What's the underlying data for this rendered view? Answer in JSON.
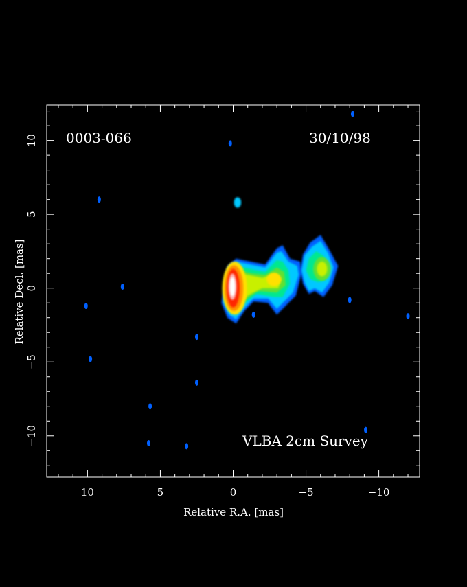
{
  "chart_data": {
    "type": "heatmap",
    "source": "0003-066",
    "date": "30/10/98",
    "survey": "VLBA 2cm Survey",
    "xlabel": "Relative R.A. [mas]",
    "ylabel": "Relative Decl. [mas]",
    "xlim": [
      12.8,
      -12.8
    ],
    "ylim": [
      -12.8,
      12.4
    ],
    "x_ticks": [
      10,
      5,
      0,
      -5,
      -10
    ],
    "y_ticks": [
      10,
      5,
      0,
      -5,
      -10
    ],
    "x_tick_labels": [
      "10",
      "5",
      "0",
      "−5",
      "−10"
    ],
    "y_tick_labels": [
      "10",
      "5",
      "0",
      "−5",
      "−10"
    ],
    "colormap": [
      "#001060",
      "#0060ff",
      "#00c8ff",
      "#00e890",
      "#60e030",
      "#c8f000",
      "#ffe000",
      "#ff9000",
      "#ff2800",
      "#ffffff"
    ],
    "background": "#000000",
    "emission_regions": [
      {
        "name": "core",
        "x": 0.0,
        "y": 0.0,
        "peak": 1.0
      },
      {
        "name": "inner-jet",
        "x": -1.5,
        "y": 0.5,
        "peak": 0.55
      },
      {
        "name": "jet-knot",
        "x": -3.0,
        "y": 0.6,
        "peak": 0.5
      },
      {
        "name": "outer-jet-knot",
        "x": -6.2,
        "y": 1.3,
        "peak": 0.4
      },
      {
        "name": "northern-spot",
        "x": -0.3,
        "y": 5.8,
        "peak": 0.15
      }
    ],
    "noise_spots": [
      {
        "x": 0.2,
        "y": 9.8
      },
      {
        "x": 9.2,
        "y": 6.0
      },
      {
        "x": 7.6,
        "y": 0.1
      },
      {
        "x": 10.1,
        "y": -1.2
      },
      {
        "x": 9.8,
        "y": -4.8
      },
      {
        "x": 2.5,
        "y": -3.3
      },
      {
        "x": 2.5,
        "y": -6.4
      },
      {
        "x": 5.7,
        "y": -8.0
      },
      {
        "x": 5.8,
        "y": -10.5
      },
      {
        "x": 3.2,
        "y": -10.7
      },
      {
        "x": -1.4,
        "y": -1.8
      },
      {
        "x": -8.0,
        "y": -0.8
      },
      {
        "x": -9.1,
        "y": -9.6
      },
      {
        "x": -12.0,
        "y": -1.9
      },
      {
        "x": -8.2,
        "y": 11.8
      }
    ]
  }
}
